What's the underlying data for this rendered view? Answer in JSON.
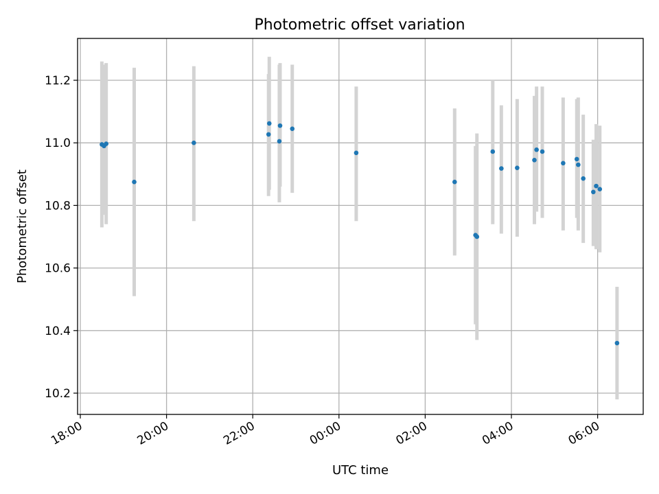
{
  "chart_data": {
    "type": "scatter",
    "title": "Photometric offset variation",
    "xlabel": "UTC time",
    "ylabel": "Photometric offset",
    "x_ticks": [
      "18:00",
      "20:00",
      "22:00",
      "00:00",
      "02:00",
      "04:00",
      "06:00"
    ],
    "y_ticks": [
      "10.2",
      "10.4",
      "10.6",
      "10.8",
      "11.0",
      "11.2"
    ],
    "x_axis": "time (UTC), spanning 18:00 to 07:00 of the following day",
    "ylim": [
      10.13,
      11.34
    ],
    "grid": true,
    "errorbar_color": "#d3d3d3",
    "point_color": "#1f77b4",
    "points": [
      {
        "x": "18:30",
        "y": 10.995,
        "yerr_low": 10.73,
        "yerr_high": 11.26
      },
      {
        "x": "18:33",
        "y": 10.99,
        "yerr_low": 10.77,
        "yerr_high": 11.25
      },
      {
        "x": "18:36",
        "y": 10.997,
        "yerr_low": 10.74,
        "yerr_high": 11.255
      },
      {
        "x": "19:15",
        "y": 10.875,
        "yerr_low": 10.51,
        "yerr_high": 11.24
      },
      {
        "x": "20:38",
        "y": 11.0,
        "yerr_low": 10.75,
        "yerr_high": 11.245
      },
      {
        "x": "22:22",
        "y": 11.027,
        "yerr_low": 10.83,
        "yerr_high": 11.22
      },
      {
        "x": "22:23",
        "y": 11.062,
        "yerr_low": 10.85,
        "yerr_high": 11.275
      },
      {
        "x": "22:37",
        "y": 11.005,
        "yerr_low": 10.81,
        "yerr_high": 11.25
      },
      {
        "x": "22:38",
        "y": 11.055,
        "yerr_low": 10.86,
        "yerr_high": 11.255
      },
      {
        "x": "22:55",
        "y": 11.045,
        "yerr_low": 10.84,
        "yerr_high": 11.25
      },
      {
        "x": "00:24",
        "y": 10.968,
        "yerr_low": 10.75,
        "yerr_high": 11.18
      },
      {
        "x": "02:41",
        "y": 10.875,
        "yerr_low": 10.64,
        "yerr_high": 11.11
      },
      {
        "x": "03:10",
        "y": 10.705,
        "yerr_low": 10.42,
        "yerr_high": 10.99
      },
      {
        "x": "03:12",
        "y": 10.7,
        "yerr_low": 10.37,
        "yerr_high": 11.03
      },
      {
        "x": "03:34",
        "y": 10.972,
        "yerr_low": 10.74,
        "yerr_high": 11.2
      },
      {
        "x": "03:46",
        "y": 10.918,
        "yerr_low": 10.71,
        "yerr_high": 11.12
      },
      {
        "x": "04:08",
        "y": 10.92,
        "yerr_low": 10.7,
        "yerr_high": 11.14
      },
      {
        "x": "04:32",
        "y": 10.945,
        "yerr_low": 10.74,
        "yerr_high": 11.15
      },
      {
        "x": "04:35",
        "y": 10.978,
        "yerr_low": 10.78,
        "yerr_high": 11.18
      },
      {
        "x": "04:43",
        "y": 10.972,
        "yerr_low": 10.76,
        "yerr_high": 11.18
      },
      {
        "x": "05:12",
        "y": 10.935,
        "yerr_low": 10.72,
        "yerr_high": 11.145
      },
      {
        "x": "05:31",
        "y": 10.948,
        "yerr_low": 10.76,
        "yerr_high": 11.14
      },
      {
        "x": "05:33",
        "y": 10.93,
        "yerr_low": 10.72,
        "yerr_high": 11.145
      },
      {
        "x": "05:40",
        "y": 10.886,
        "yerr_low": 10.68,
        "yerr_high": 11.09
      },
      {
        "x": "05:54",
        "y": 10.843,
        "yerr_low": 10.67,
        "yerr_high": 11.01
      },
      {
        "x": "05:58",
        "y": 10.862,
        "yerr_low": 10.66,
        "yerr_high": 11.06
      },
      {
        "x": "06:03",
        "y": 10.852,
        "yerr_low": 10.65,
        "yerr_high": 11.055
      },
      {
        "x": "06:27",
        "y": 10.36,
        "yerr_low": 10.18,
        "yerr_high": 10.54
      }
    ]
  }
}
